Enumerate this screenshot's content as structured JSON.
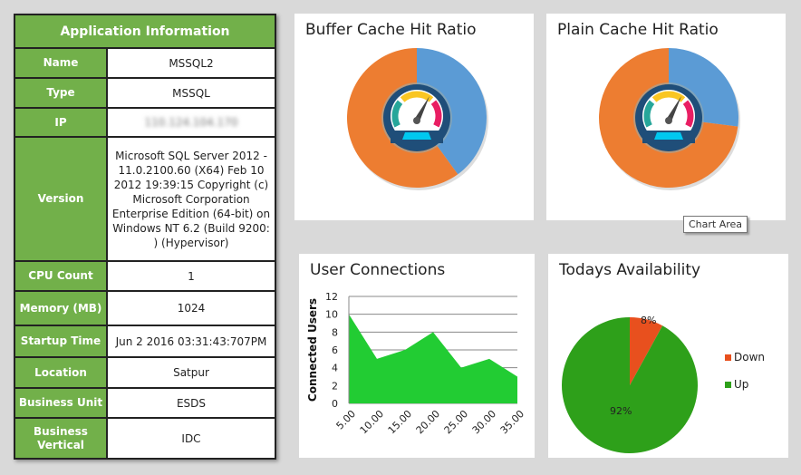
{
  "app_info": {
    "title": "Application Information",
    "rows": [
      {
        "label": "Name",
        "value": "MSSQL2"
      },
      {
        "label": "Type",
        "value": "MSSQL"
      },
      {
        "label": "IP",
        "value": "110.124.104.170"
      },
      {
        "label": "Version",
        "value": "Microsoft SQL Server 2012 - 11.0.2100.60 (X64) Feb 10 2012 19:39:15 Copyright (c) Microsoft Corporation Enterprise Edition (64-bit) on Windows NT 6.2 (Build 9200: ) (Hypervisor)"
      },
      {
        "label": "CPU Count",
        "value": "1"
      },
      {
        "label": "Memory (MB)",
        "value": "1024"
      },
      {
        "label": "Startup Time",
        "value": "Jun 2 2016 03:31:43:707PM"
      },
      {
        "label": "Location",
        "value": "Satpur"
      },
      {
        "label": "Business Unit",
        "value": "ESDS"
      },
      {
        "label": "Business Vertical",
        "value": "IDC"
      }
    ]
  },
  "tooltip": "Chart Area",
  "chart_data": [
    {
      "type": "pie",
      "title": "Buffer Cache Hit Ratio",
      "values": [
        40,
        60
      ],
      "colors": [
        "#5b9bd5",
        "#ed7d31"
      ],
      "center_icon": "speedometer-icon"
    },
    {
      "type": "pie",
      "title": "Plain Cache Hit Ratio",
      "values": [
        27,
        73
      ],
      "colors": [
        "#5b9bd5",
        "#ed7d31"
      ],
      "center_icon": "speedometer-icon"
    },
    {
      "type": "area",
      "title": "User Connections",
      "ylabel": "Connected Users",
      "x": [
        "5.00",
        "10.00",
        "15.00",
        "20.00",
        "25.00",
        "30.00",
        "35.00"
      ],
      "values": [
        10,
        5,
        6,
        8,
        4,
        5,
        3
      ],
      "ylim": [
        0,
        12
      ],
      "yticks": [
        0,
        2,
        4,
        6,
        8,
        10,
        12
      ],
      "color": "#22cc33",
      "grid": true
    },
    {
      "type": "pie",
      "title": "Todays Availability",
      "categories": [
        "Down",
        "Up"
      ],
      "values": [
        8,
        92
      ],
      "labels": [
        "8%",
        "92%"
      ],
      "colors": [
        "#e8501e",
        "#2ea01a"
      ],
      "legend": "right"
    }
  ]
}
